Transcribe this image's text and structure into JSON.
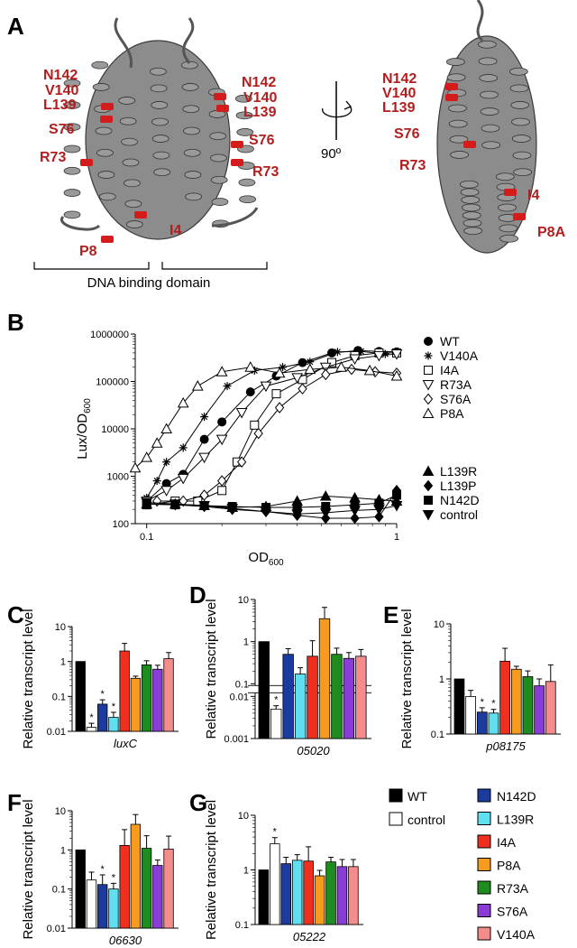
{
  "panels": {
    "A": {
      "label": "A",
      "left_residues": [
        "N142",
        "V140",
        "L139",
        "S76",
        "R73",
        "P8"
      ],
      "right_of_left_residues": [
        "N142",
        "V140",
        "L139",
        "S76",
        "R73",
        "I4"
      ],
      "rotated_residues": [
        "N142",
        "V140",
        "L139",
        "S76",
        "R73",
        "I4",
        "P8A"
      ],
      "rotation_label": "90º",
      "domain_label": "DNA binding domain"
    },
    "B": {
      "label": "B"
    },
    "C": {
      "label": "C",
      "gene": "luxC"
    },
    "D": {
      "label": "D",
      "gene": "05020"
    },
    "E": {
      "label": "E",
      "gene": "p08175"
    },
    "F": {
      "label": "F",
      "gene": "06630"
    },
    "G": {
      "label": "G",
      "gene": "05222"
    }
  },
  "legend_bars": [
    {
      "name": "WT",
      "color": "#000000"
    },
    {
      "name": "control",
      "color": "#ffffff"
    },
    {
      "name": "N142D",
      "color": "#1b3c9e"
    },
    {
      "name": "L139R",
      "color": "#5fe0f0"
    },
    {
      "name": "I4A",
      "color": "#f0301e"
    },
    {
      "name": "P8A",
      "color": "#f59b20"
    },
    {
      "name": "R73A",
      "color": "#1f8c1f"
    },
    {
      "name": "S76A",
      "color": "#8a3cd6"
    },
    {
      "name": "V140A",
      "color": "#f58c8c"
    }
  ],
  "chart_data": [
    {
      "type": "line",
      "panel": "B",
      "xlabel": "OD600",
      "ylabel": "Lux/OD600",
      "xscale": "log",
      "yscale": "log",
      "xlim": [
        0.09,
        1.0
      ],
      "ylim": [
        100,
        1000000
      ],
      "yticks": [
        "1000000",
        "100000",
        "10000",
        "1000",
        "100"
      ],
      "xticks": [
        "0.1",
        "1"
      ],
      "series": [
        {
          "name": "WT",
          "marker": "circle-filled",
          "x": [
            0.1,
            0.12,
            0.14,
            0.17,
            0.2,
            0.26,
            0.33,
            0.42,
            0.55,
            0.7,
            0.85,
            1.0
          ],
          "y": [
            300,
            700,
            1100,
            6000,
            14000,
            60000,
            130000,
            250000,
            400000,
            450000,
            430000,
            420000
          ]
        },
        {
          "name": "V140A",
          "marker": "star",
          "x": [
            0.1,
            0.11,
            0.12,
            0.14,
            0.17,
            0.21,
            0.27,
            0.35,
            0.45,
            0.58,
            0.72,
            0.9
          ],
          "y": [
            350,
            800,
            2000,
            4000,
            18000,
            80000,
            170000,
            200000,
            260000,
            420000,
            430000,
            380000
          ]
        },
        {
          "name": "I4A",
          "marker": "square-open",
          "x": [
            0.1,
            0.13,
            0.16,
            0.2,
            0.23,
            0.27,
            0.33,
            0.42,
            0.55,
            0.68,
            0.85,
            1.0
          ],
          "y": [
            250,
            300,
            300,
            500,
            2000,
            12000,
            55000,
            110000,
            250000,
            350000,
            400000,
            400000
          ]
        },
        {
          "name": "R73A",
          "marker": "triangle-down-open",
          "x": [
            0.1,
            0.12,
            0.14,
            0.17,
            0.2,
            0.24,
            0.3,
            0.4,
            0.52,
            0.68,
            0.85,
            1.0
          ],
          "y": [
            300,
            500,
            900,
            2500,
            6000,
            22000,
            80000,
            120000,
            200000,
            300000,
            350000,
            380000
          ]
        },
        {
          "name": "S76A",
          "marker": "diamond-open",
          "x": [
            0.11,
            0.14,
            0.17,
            0.2,
            0.24,
            0.28,
            0.34,
            0.42,
            0.52,
            0.66,
            0.82,
            1.0
          ],
          "y": [
            300,
            300,
            400,
            800,
            2000,
            8000,
            28000,
            70000,
            140000,
            180000,
            160000,
            150000
          ]
        },
        {
          "name": "P8A",
          "marker": "triangle-up-open",
          "x": [
            0.09,
            0.1,
            0.11,
            0.12,
            0.14,
            0.16,
            0.2,
            0.26,
            0.34,
            0.45,
            0.6,
            0.78,
            1.0
          ],
          "y": [
            1500,
            2500,
            5000,
            10000,
            35000,
            80000,
            160000,
            200000,
            150000,
            180000,
            200000,
            170000,
            130000
          ]
        },
        {
          "name": "L139R",
          "marker": "triangle-up-filled",
          "x": [
            0.1,
            0.13,
            0.17,
            0.22,
            0.3,
            0.4,
            0.52,
            0.68,
            0.85,
            1.0
          ],
          "y": [
            260,
            260,
            240,
            220,
            230,
            300,
            380,
            350,
            320,
            300
          ]
        },
        {
          "name": "L139P",
          "marker": "diamond-filled",
          "x": [
            0.1,
            0.13,
            0.17,
            0.22,
            0.3,
            0.4,
            0.52,
            0.68,
            0.85,
            1.0
          ],
          "y": [
            260,
            250,
            230,
            200,
            180,
            150,
            130,
            130,
            140,
            500
          ]
        },
        {
          "name": "N142D",
          "marker": "square-filled",
          "x": [
            0.1,
            0.13,
            0.17,
            0.22,
            0.3,
            0.4,
            0.52,
            0.68,
            0.85,
            1.0
          ],
          "y": [
            260,
            250,
            240,
            230,
            220,
            220,
            230,
            250,
            270,
            400
          ]
        },
        {
          "name": "control",
          "marker": "triangle-down-filled",
          "x": [
            0.1,
            0.13,
            0.17,
            0.22,
            0.3,
            0.4,
            0.52,
            0.68,
            0.85,
            1.0
          ],
          "y": [
            280,
            260,
            240,
            210,
            180,
            160,
            170,
            190,
            200,
            240
          ]
        }
      ]
    },
    {
      "type": "bar",
      "panel": "C",
      "ylabel": "Relative transcript level",
      "yscale": "log",
      "ylim": [
        0.01,
        10
      ],
      "yticks": [
        "10",
        "1",
        "0.1",
        "0.01"
      ],
      "categories": [
        "WT",
        "control",
        "N142D",
        "L139R",
        "I4A",
        "P8A",
        "R73A",
        "S76A",
        "V140A"
      ],
      "values": [
        1,
        0.013,
        0.06,
        0.025,
        2.0,
        0.33,
        0.8,
        0.6,
        1.2
      ],
      "errors": [
        0,
        0.004,
        0.02,
        0.01,
        1.3,
        0.05,
        0.25,
        0.18,
        0.6
      ],
      "stars": [
        false,
        true,
        true,
        true,
        false,
        false,
        false,
        false,
        false
      ]
    },
    {
      "type": "bar",
      "panel": "D",
      "ylabel": "Relative transcript level",
      "yscale": "log",
      "ylim": [
        0.001,
        10
      ],
      "axis_break": [
        0.01,
        0.1
      ],
      "yticks": [
        "10",
        "1",
        "0.1",
        "0.01",
        "0.001"
      ],
      "categories": [
        "WT",
        "control",
        "N142D",
        "L139R",
        "I4A",
        "P8A",
        "R73A",
        "S76A",
        "V140A"
      ],
      "values": [
        1,
        0.005,
        0.5,
        0.17,
        0.45,
        3.5,
        0.5,
        0.4,
        0.45
      ],
      "errors": [
        0,
        0.001,
        0.18,
        0.07,
        0.6,
        3.0,
        0.2,
        0.15,
        0.2
      ],
      "stars": [
        false,
        true,
        false,
        false,
        false,
        false,
        false,
        false,
        false
      ]
    },
    {
      "type": "bar",
      "panel": "E",
      "ylabel": "Relative transcript level",
      "yscale": "log",
      "ylim": [
        0.1,
        10
      ],
      "yticks": [
        "10",
        "1",
        "0.1"
      ],
      "categories": [
        "WT",
        "control",
        "N142D",
        "L139R",
        "I4A",
        "P8A",
        "R73A",
        "S76A",
        "V140A"
      ],
      "values": [
        1,
        0.48,
        0.25,
        0.24,
        2.1,
        1.5,
        1.1,
        0.75,
        0.9
      ],
      "errors": [
        0,
        0.14,
        0.05,
        0.04,
        1.5,
        0.2,
        0.3,
        0.25,
        0.9
      ],
      "stars": [
        false,
        false,
        true,
        true,
        false,
        false,
        false,
        false,
        false
      ]
    },
    {
      "type": "bar",
      "panel": "F",
      "ylabel": "Relative transcript level",
      "yscale": "log",
      "ylim": [
        0.01,
        10
      ],
      "yticks": [
        "10",
        "1",
        "0.1",
        "0.01"
      ],
      "categories": [
        "WT",
        "control",
        "N142D",
        "L139R",
        "I4A",
        "P8A",
        "R73A",
        "S76A",
        "V140A"
      ],
      "values": [
        1,
        0.17,
        0.13,
        0.1,
        1.3,
        4.5,
        1.1,
        0.4,
        1.05
      ],
      "errors": [
        0,
        0.1,
        0.1,
        0.04,
        2.0,
        3.5,
        1.2,
        0.15,
        1.2
      ],
      "stars": [
        false,
        false,
        true,
        true,
        false,
        false,
        false,
        false,
        false
      ]
    },
    {
      "type": "bar",
      "panel": "G",
      "ylabel": "Relative transcript level",
      "yscale": "log",
      "ylim": [
        0.1,
        10
      ],
      "yticks": [
        "10",
        "1",
        "0.1"
      ],
      "categories": [
        "WT",
        "control",
        "N142D",
        "L139R",
        "I4A",
        "P8A",
        "R73A",
        "S76A",
        "V140A"
      ],
      "values": [
        1,
        3.0,
        1.3,
        1.5,
        1.45,
        0.78,
        1.4,
        1.15,
        1.15
      ],
      "errors": [
        0,
        0.9,
        0.4,
        0.4,
        1.2,
        0.2,
        0.3,
        0.4,
        0.4
      ],
      "stars": [
        false,
        true,
        false,
        false,
        false,
        false,
        false,
        false,
        false
      ]
    }
  ]
}
